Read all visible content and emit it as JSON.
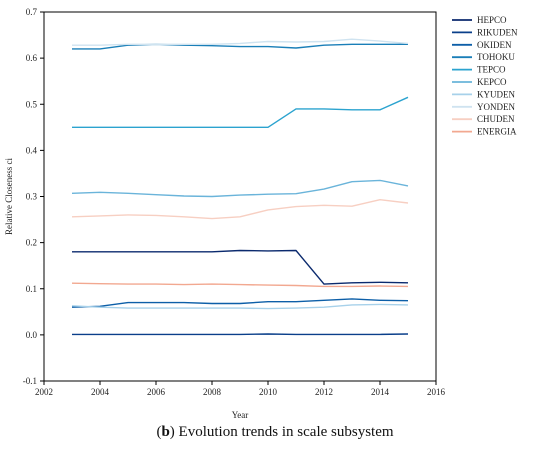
{
  "caption": {
    "label": "b",
    "text": " Evolution trends in scale subsystem"
  },
  "chart_data": {
    "type": "line",
    "xlabel": "Year",
    "ylabel": "Relative Closeness ci",
    "xlim": [
      2002,
      2016
    ],
    "ylim": [
      -0.1,
      0.7
    ],
    "xticks": [
      2002,
      2004,
      2006,
      2008,
      2010,
      2012,
      2014,
      2016
    ],
    "yticks": [
      -0.1,
      0.0,
      0.1,
      0.2,
      0.3,
      0.4,
      0.5,
      0.6,
      0.7
    ],
    "grid": false,
    "legend_position": "top-right",
    "x": [
      2003,
      2004,
      2005,
      2006,
      2007,
      2008,
      2009,
      2010,
      2011,
      2012,
      2013,
      2014,
      2015
    ],
    "series": [
      {
        "name": "HEPCO",
        "color": "#0b2a6e",
        "values": [
          0.18,
          0.18,
          0.18,
          0.18,
          0.18,
          0.18,
          0.183,
          0.182,
          0.183,
          0.11,
          0.113,
          0.114,
          0.113
        ]
      },
      {
        "name": "RIKUDEN",
        "color": "#0a3f8a",
        "values": [
          0.001,
          0.001,
          0.001,
          0.001,
          0.001,
          0.001,
          0.001,
          0.002,
          0.001,
          0.001,
          0.001,
          0.001,
          0.002
        ]
      },
      {
        "name": "OKIDEN",
        "color": "#0d5fa8",
        "values": [
          0.06,
          0.062,
          0.07,
          0.07,
          0.07,
          0.068,
          0.068,
          0.072,
          0.072,
          0.075,
          0.078,
          0.075,
          0.074
        ]
      },
      {
        "name": "TOHOKU",
        "color": "#1a7fb8",
        "values": [
          0.62,
          0.62,
          0.628,
          0.63,
          0.628,
          0.627,
          0.625,
          0.625,
          0.622,
          0.628,
          0.63,
          0.63,
          0.63
        ]
      },
      {
        "name": "TEPCO",
        "color": "#2ba3cf",
        "values": [
          0.45,
          0.45,
          0.45,
          0.45,
          0.45,
          0.45,
          0.45,
          0.45,
          0.49,
          0.49,
          0.488,
          0.488,
          0.515
        ]
      },
      {
        "name": "KEPCO",
        "color": "#6ab4da",
        "values": [
          0.307,
          0.309,
          0.307,
          0.304,
          0.301,
          0.3,
          0.303,
          0.305,
          0.306,
          0.316,
          0.332,
          0.335,
          0.323
        ]
      },
      {
        "name": "KYUDEN",
        "color": "#a7d1ea",
        "values": [
          0.063,
          0.06,
          0.058,
          0.058,
          0.058,
          0.058,
          0.058,
          0.057,
          0.058,
          0.06,
          0.065,
          0.066,
          0.065
        ]
      },
      {
        "name": "YONDEN",
        "color": "#cfe3f0",
        "values": [
          0.628,
          0.628,
          0.63,
          0.63,
          0.63,
          0.63,
          0.632,
          0.636,
          0.635,
          0.636,
          0.641,
          0.637,
          0.632
        ]
      },
      {
        "name": "CHUDEN",
        "color": "#f7cfc2",
        "values": [
          0.256,
          0.258,
          0.26,
          0.259,
          0.256,
          0.252,
          0.256,
          0.271,
          0.278,
          0.281,
          0.279,
          0.293,
          0.286
        ]
      },
      {
        "name": "ENERGIA",
        "color": "#f2a890",
        "values": [
          0.112,
          0.111,
          0.11,
          0.11,
          0.109,
          0.11,
          0.109,
          0.108,
          0.107,
          0.105,
          0.105,
          0.106,
          0.105
        ]
      }
    ]
  }
}
